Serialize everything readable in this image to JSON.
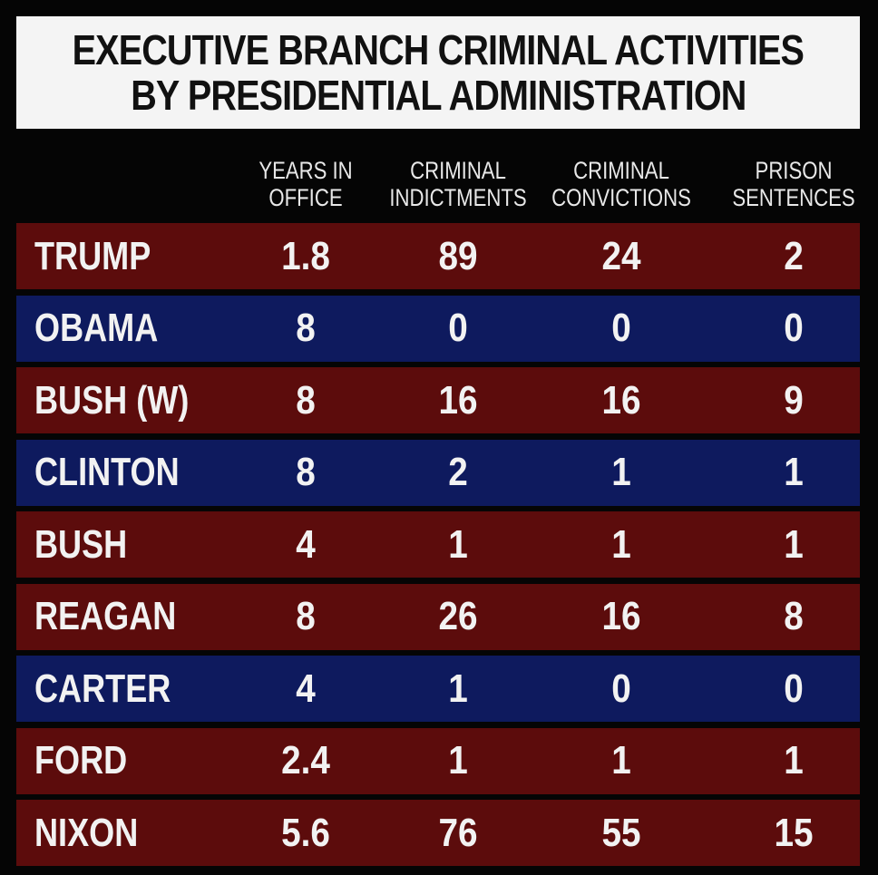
{
  "title": {
    "line1": "EXECUTIVE BRANCH CRIMINAL ACTIVITIES",
    "line2": "BY PRESIDENTIAL ADMINISTRATION"
  },
  "chart_data": {
    "type": "table",
    "columns": [
      {
        "line1": "YEARS IN",
        "line2": "OFFICE"
      },
      {
        "line1": "CRIMINAL",
        "line2": "INDICTMENTS"
      },
      {
        "line1": "CRIMINAL",
        "line2": "CONVICTIONS"
      },
      {
        "line1": "PRISON",
        "line2": "SENTENCES"
      }
    ],
    "rows": [
      {
        "name": "TRUMP",
        "values": [
          "1.8",
          "89",
          "24",
          "2"
        ],
        "color": "#5c0c0c"
      },
      {
        "name": "OBAMA",
        "values": [
          "8",
          "0",
          "0",
          "0"
        ],
        "color": "#0e1a5e"
      },
      {
        "name": "BUSH (W)",
        "values": [
          "8",
          "16",
          "16",
          "9"
        ],
        "color": "#5c0c0c"
      },
      {
        "name": "CLINTON",
        "values": [
          "8",
          "2",
          "1",
          "1"
        ],
        "color": "#0e1a5e"
      },
      {
        "name": "BUSH",
        "values": [
          "4",
          "1",
          "1",
          "1"
        ],
        "color": "#5c0c0c"
      },
      {
        "name": "REAGAN",
        "values": [
          "8",
          "26",
          "16",
          "8"
        ],
        "color": "#5c0c0c"
      },
      {
        "name": "CARTER",
        "values": [
          "4",
          "1",
          "0",
          "0"
        ],
        "color": "#0e1a5e"
      },
      {
        "name": "FORD",
        "values": [
          "2.4",
          "1",
          "1",
          "1"
        ],
        "color": "#5c0c0c"
      },
      {
        "name": "NIXON",
        "values": [
          "5.6",
          "76",
          "55",
          "15"
        ],
        "color": "#5c0c0c"
      }
    ]
  }
}
